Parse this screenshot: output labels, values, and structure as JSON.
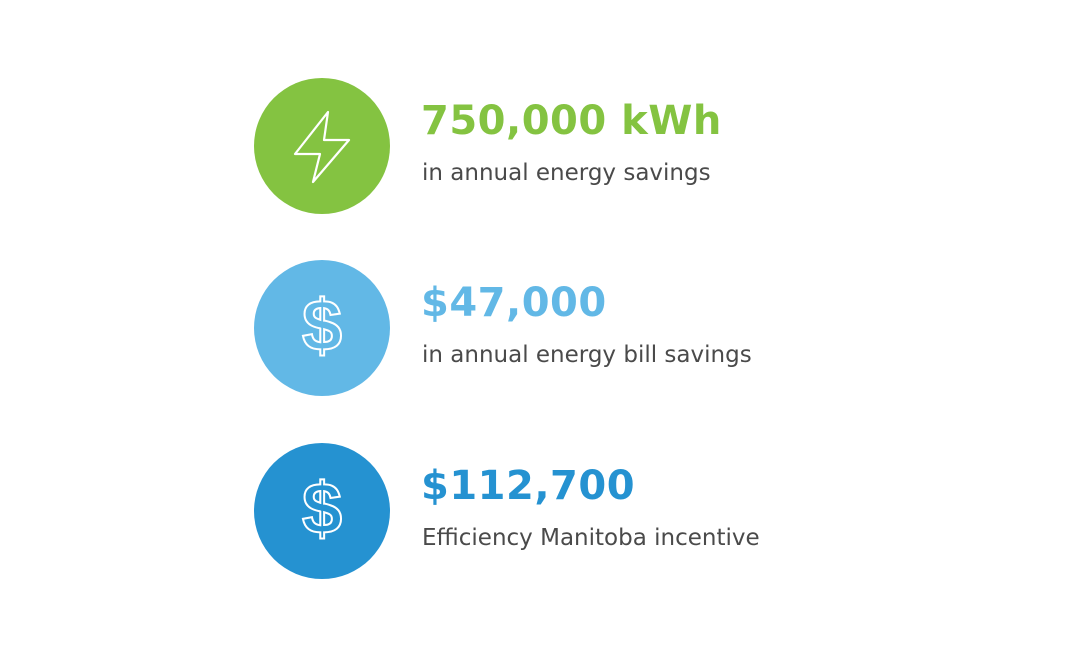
{
  "stats": [
    {
      "value": "750,000 kWh",
      "label": "in annual energy savings",
      "icon": "lightning-bolt-icon",
      "color": "#84c341"
    },
    {
      "value": "$47,000",
      "label": "in annual energy bill savings",
      "icon": "dollar-icon",
      "color": "#62b8e6"
    },
    {
      "value": "$112,700",
      "label": "Efficiency Manitoba incentive",
      "icon": "dollar-icon",
      "color": "#2592d1"
    }
  ]
}
